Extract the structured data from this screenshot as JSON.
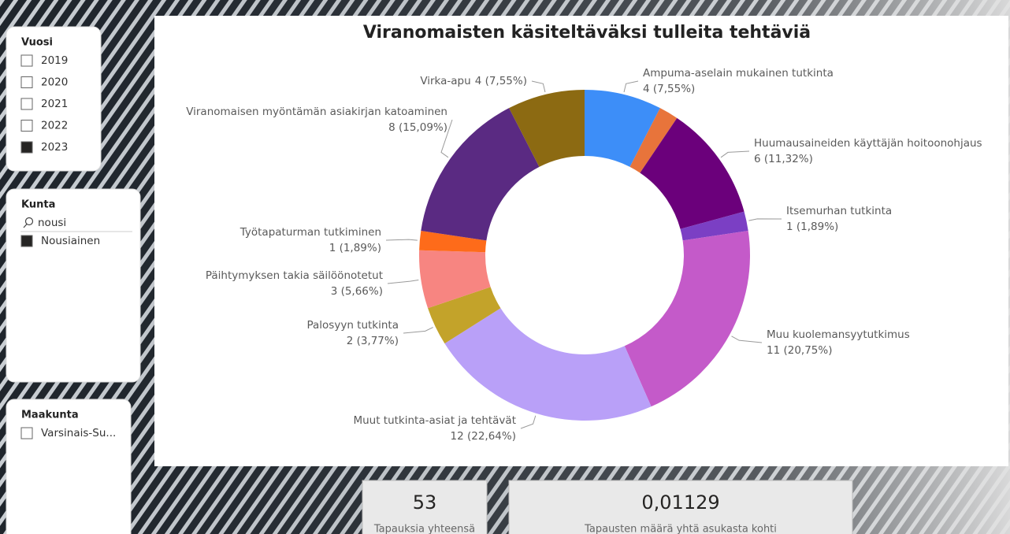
{
  "chart_data": {
    "type": "donut",
    "title": "Viranomaisten käsiteltäväksi tulleita tehtäviä",
    "categories": [
      "Ampuma-aselain mukainen tutkinta",
      null,
      "Huumausaineiden käyttäjän hoitoonohjaus",
      "Itsemurhan tutkinta",
      "Muu kuolemansyytutkimus",
      "Muut tutkinta-asiat ja tehtävät",
      "Palosyyn tutkinta",
      "Päihtymyksen takia säilöönotetut",
      "Työtapaturman tutkiminen",
      "Viranomaisen myöntämän asiakirjan katoaminen",
      "Virka-apu"
    ],
    "values": [
      4,
      1,
      6,
      1,
      11,
      12,
      2,
      3,
      1,
      8,
      4
    ],
    "value_labels": [
      "4 (7,55%)",
      null,
      "6 (11,32%)",
      "1 (1,89%)",
      "11 (20,75%)",
      "12 (22,64%)",
      "2 (3,77%)",
      "3 (5,66%)",
      "1 (1,89%)",
      "8 (15,09%)",
      "4 (7,55%)"
    ],
    "colors": [
      "#3d8ef8",
      "#e8743b",
      "#6b007b",
      "#7b3fc4",
      "#c45ac9",
      "#b9a0f8",
      "#c3a32a",
      "#f78581",
      "#fe6b1a",
      "#5a2a82",
      "#8c6a12"
    ]
  },
  "slicers": [
    {
      "title": "Vuosi",
      "items": [
        {
          "label": "2019",
          "selected": false
        },
        {
          "label": "2020",
          "selected": false
        },
        {
          "label": "2021",
          "selected": false
        },
        {
          "label": "2022",
          "selected": false
        },
        {
          "label": "2023",
          "selected": true
        }
      ]
    },
    {
      "title": "Kunta",
      "search": "nousi",
      "items": [
        {
          "label": "Nousiainen",
          "selected": true
        }
      ]
    },
    {
      "title": "Maakunta",
      "items": [
        {
          "label": "Varsinais-Su...",
          "selected": false
        }
      ]
    }
  ],
  "cards": [
    {
      "value": 53,
      "label": "Tapauksia yhteensä"
    },
    {
      "value": "0,01129",
      "label": "Tapausten määrä yhtä asukasta kohti"
    }
  ]
}
